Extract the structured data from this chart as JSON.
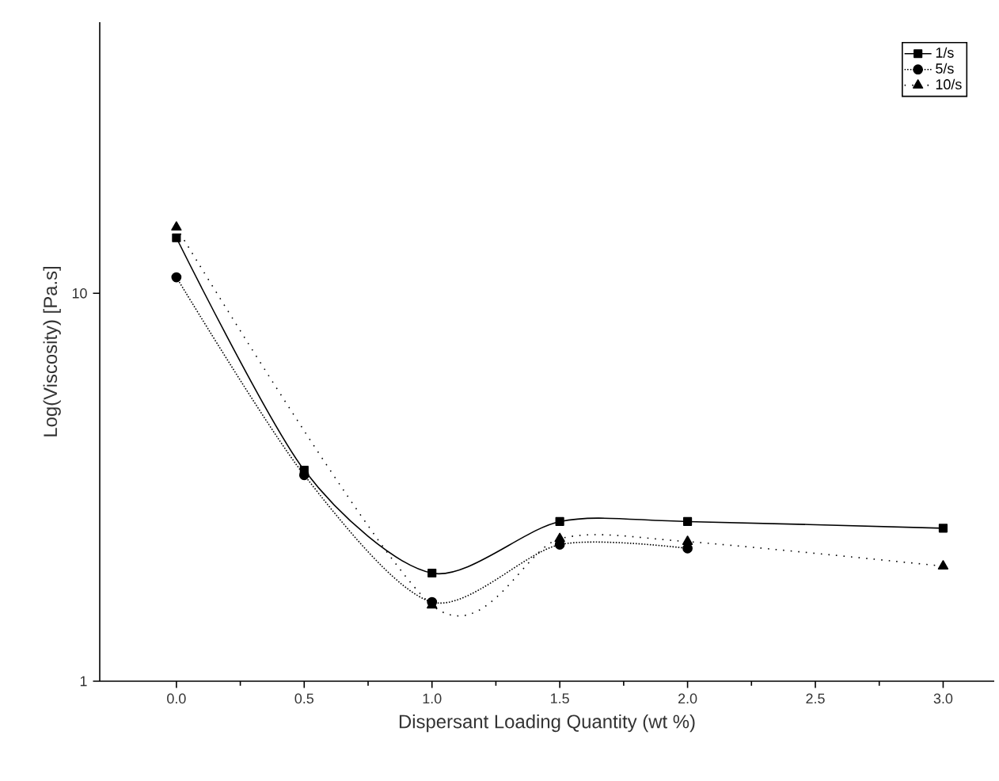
{
  "chart_data": {
    "type": "line",
    "xlabel": "Dispersant Loading Quantity (wt %)",
    "ylabel": "Log(Viscosity) [Pa.s]",
    "x": [
      0,
      0.5,
      1,
      1.5,
      2,
      3
    ],
    "series": [
      {
        "name": "1/s",
        "color": "#000000",
        "marker": "square",
        "line_style": "solid",
        "values": [
          13.9,
          3.5,
          1.9,
          2.58,
          2.58,
          2.48
        ]
      },
      {
        "name": "5/s",
        "color": "#000000",
        "marker": "circle",
        "line_style": "dotted",
        "values": [
          11.0,
          3.4,
          1.6,
          2.25,
          2.2,
          null
        ]
      },
      {
        "name": "10/s",
        "color": "#000000",
        "marker": "triangle",
        "line_style": "dashed",
        "values": [
          14.8,
          null,
          1.57,
          2.33,
          2.29,
          1.98
        ]
      }
    ],
    "log": "y",
    "xlim": [
      -0.3,
      3.2
    ],
    "ylim": [
      1,
      50
    ],
    "xticks": [
      {
        "value": 0,
        "label": "0.0"
      },
      0.5,
      {
        "value": 1,
        "label": "1.0"
      },
      1.5,
      {
        "value": 2,
        "label": "2.0"
      },
      2.5,
      {
        "value": 3,
        "label": "3.0"
      }
    ],
    "yticks": [
      1,
      10
    ],
    "grid": false,
    "legend": "top right"
  }
}
